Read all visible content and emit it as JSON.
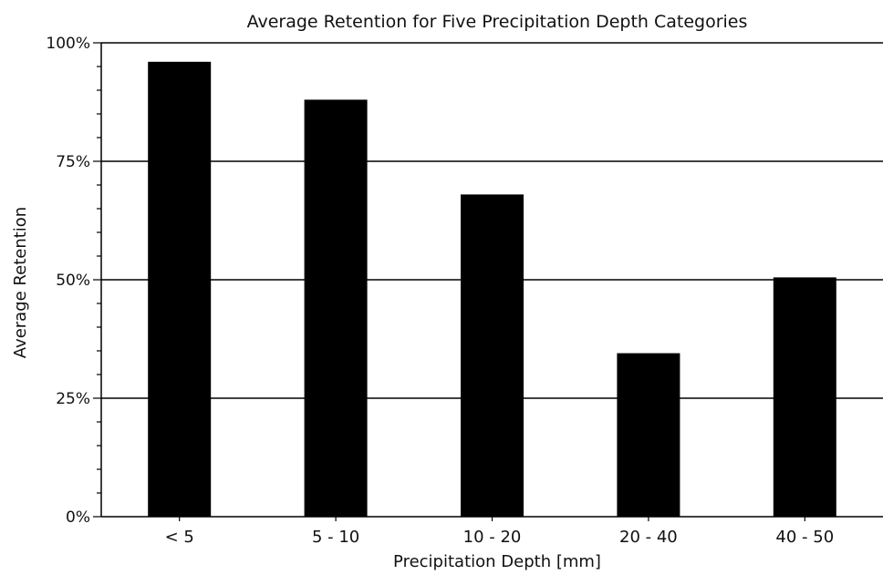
{
  "chart_data": {
    "type": "bar",
    "title": "Average Retention for Five Precipitation Depth Categories",
    "xlabel": "Precipitation Depth [mm]",
    "ylabel": "Average Retention",
    "categories": [
      "< 5",
      "5 - 10",
      "10 - 20",
      "20 - 40",
      "40 - 50"
    ],
    "values": [
      96,
      88,
      68,
      34.5,
      50.5
    ],
    "value_unit": "percent",
    "ylim": [
      0,
      100
    ],
    "yticks": [
      0,
      25,
      50,
      75,
      100
    ],
    "ytick_labels": [
      "0%",
      "25%",
      "50%",
      "75%",
      "100%"
    ],
    "y_minor_tick_step": 5,
    "grid": "horizontal at major y ticks",
    "legend": "none",
    "bar_color": "#000000",
    "grid_color": "#000000"
  }
}
